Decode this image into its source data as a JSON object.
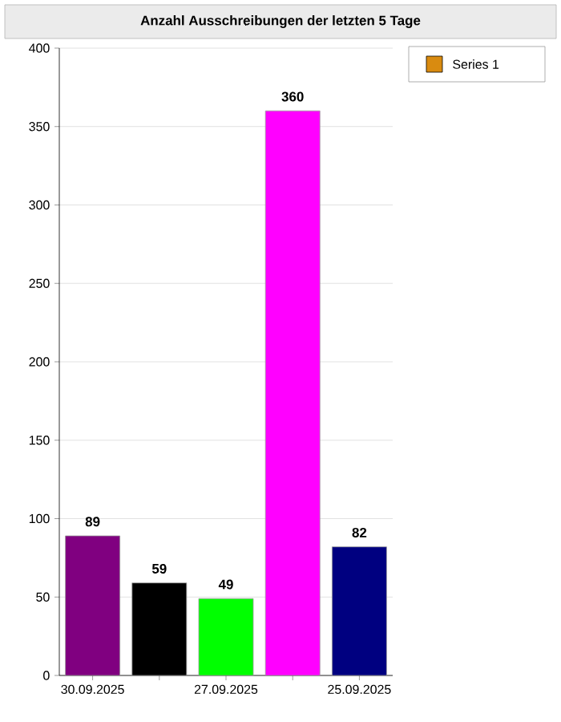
{
  "chart_data": {
    "type": "bar",
    "title": "Anzahl Ausschreibungen der letzten 5 Tage",
    "categories": [
      "30.09.2025",
      null,
      "27.09.2025",
      null,
      "25.09.2025"
    ],
    "series": [
      {
        "name": "Series 1",
        "color": "#d98b10",
        "colors": [
          "#800080",
          "#000000",
          "#00ff00",
          "#ff00ff",
          "#000080"
        ],
        "values": [
          89,
          59,
          49,
          360,
          82
        ]
      }
    ],
    "ylim": [
      0,
      400
    ],
    "yticks": [
      0,
      50,
      100,
      150,
      200,
      250,
      300,
      350,
      400
    ],
    "grid": "y",
    "legend": "top right",
    "data_labels": true
  }
}
